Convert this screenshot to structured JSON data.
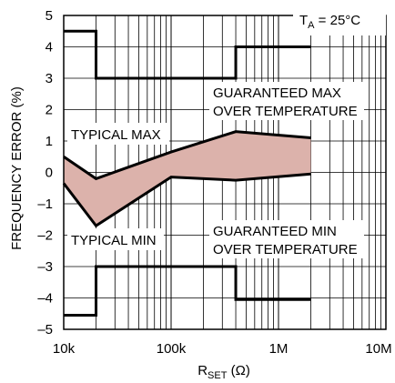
{
  "chart_data": {
    "type": "line",
    "xlabel_main": "R",
    "xlabel_sub": "SET",
    "xlabel_unit": " (Ω)",
    "ylabel": "FREQUENCY ERROR (%)",
    "x_scale": "log",
    "xlim": [
      10000,
      10000000
    ],
    "ylim": [
      -5,
      5
    ],
    "x_ticks": [
      10000,
      100000,
      1000000,
      10000000
    ],
    "x_tick_labels": [
      "10k",
      "100k",
      "1M",
      "10M"
    ],
    "y_ticks": [
      5,
      4,
      3,
      2,
      1,
      0,
      -1,
      -2,
      -3,
      -4,
      -5
    ],
    "y_tick_labels": [
      "5",
      "4",
      "3",
      "2",
      "1",
      "0",
      "–1",
      "–2",
      "–3",
      "–4",
      "–5"
    ],
    "grid": true,
    "band_color": "#dcb2ab",
    "line_color": "#000000",
    "annotation": {
      "main": "T",
      "sub": "A",
      "rest": " = 25°C"
    },
    "labels": {
      "typical_max": "TYPICAL MAX",
      "typical_min": "TYPICAL MIN",
      "guaranteed_max_1": "GUARANTEED MAX",
      "guaranteed_max_2": "OVER TEMPERATURE",
      "guaranteed_min_1": "GUARANTEED MIN",
      "guaranteed_min_2": "OVER TEMPERATURE"
    },
    "series": [
      {
        "key": "guaranteed_max",
        "x": [
          10000,
          20000,
          20000,
          400000,
          400000,
          2000000
        ],
        "y": [
          4.5,
          4.5,
          3,
          3,
          4,
          4
        ]
      },
      {
        "key": "guaranteed_min",
        "x": [
          10000,
          20000,
          20000,
          400000,
          400000,
          2000000
        ],
        "y": [
          -4.55,
          -4.55,
          -3,
          -3,
          -4.05,
          -4.05
        ]
      },
      {
        "key": "typical_max",
        "x": [
          10000,
          20000,
          100000,
          400000,
          2000000
        ],
        "y": [
          0.5,
          -0.2,
          0.65,
          1.3,
          1.1
        ]
      },
      {
        "key": "typical_min",
        "x": [
          10000,
          20000,
          100000,
          400000,
          2000000
        ],
        "y": [
          -0.35,
          -1.7,
          -0.15,
          -0.25,
          -0.05
        ]
      }
    ]
  }
}
